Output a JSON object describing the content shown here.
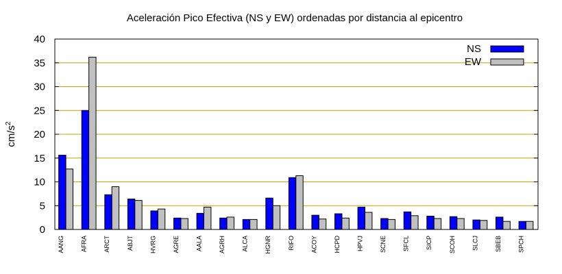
{
  "chart_data": {
    "type": "bar",
    "title": "Aceleración Pico Efectiva (NS y EW) ordenadas por distancia al epicentro",
    "xlabel": "",
    "ylabel": "cm/s",
    "ylabel_superscript": "2",
    "ylim": [
      0,
      40
    ],
    "yticks": [
      "0",
      "5",
      "10",
      "15",
      "20",
      "25",
      "30",
      "35",
      "40"
    ],
    "grid": true,
    "legend_position": "top-right",
    "categories": [
      "AANG",
      "AFRA",
      "ARCT",
      "ABJT",
      "HVRG",
      "AGRE",
      "AALA",
      "AGRH",
      "ALCA",
      "HGNR",
      "RIFO",
      "ACOY",
      "HCPD",
      "HPVJ",
      "SCNE",
      "SFCL",
      "SICP",
      "SCOH",
      "SLCJ",
      "SBEB",
      "SPCH"
    ],
    "series": [
      {
        "name": "NS",
        "color": "#0000ff",
        "values": [
          15.6,
          25.0,
          7.3,
          6.4,
          3.9,
          2.4,
          3.4,
          2.4,
          2.1,
          6.6,
          10.9,
          3.0,
          3.3,
          4.7,
          2.3,
          3.7,
          2.8,
          2.7,
          2.0,
          2.6,
          1.7
        ]
      },
      {
        "name": "EW",
        "color": "#c0c0c0",
        "values": [
          12.7,
          36.2,
          9.0,
          6.1,
          4.3,
          2.3,
          4.7,
          2.6,
          2.1,
          5.0,
          11.3,
          2.2,
          2.4,
          3.6,
          2.1,
          2.9,
          2.3,
          2.3,
          1.9,
          1.7,
          1.7
        ]
      }
    ]
  }
}
